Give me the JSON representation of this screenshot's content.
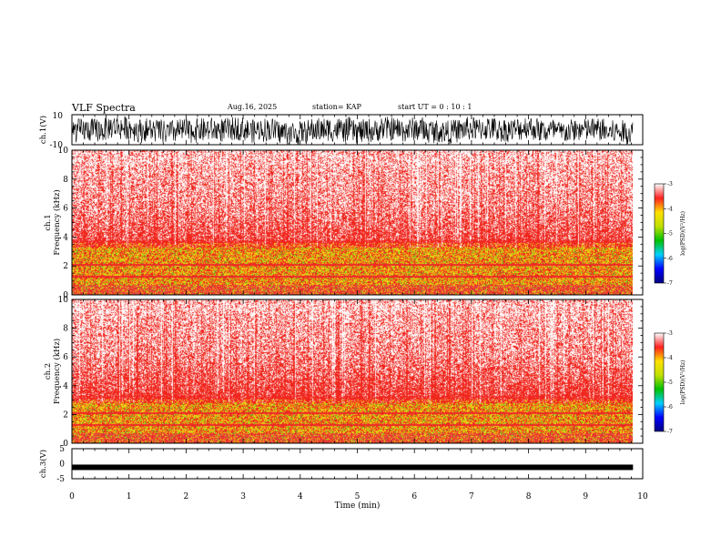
{
  "header": {
    "title": "VLF Spectra",
    "date": "Aug.16, 2025",
    "station": "station= KAP",
    "start": "start  UT  =   0  : 10 : 1"
  },
  "chart_data": [
    {
      "id": "ch1-waveform",
      "type": "line",
      "ylabel": "ch.1(V)",
      "ylim": [
        -10,
        10
      ],
      "ytick_labels": [
        "10",
        "-10"
      ],
      "xlim": [
        0,
        10
      ],
      "data_extent_min": 9.83,
      "description_values": {
        "min": -10,
        "max": 10
      }
    },
    {
      "id": "ch1-spectrogram",
      "type": "heatmap",
      "ylabel": "ch.1\nFrequency  (kHz)",
      "ylabel_lines": [
        "ch.1",
        "Frequency  (kHz)"
      ],
      "ylim": [
        0,
        10
      ],
      "yticks": [
        0,
        2,
        4,
        6,
        8,
        10
      ],
      "xlim": [
        0,
        10
      ],
      "band_top_khz": 3.3,
      "colorbar": {
        "label": "log(PSD)(V²/Hz)",
        "min": -7,
        "max": -3,
        "tick_labels": [
          "-3",
          "-4",
          "-5",
          "-6",
          "-7"
        ]
      }
    },
    {
      "id": "ch2-spectrogram",
      "type": "heatmap",
      "ylabel_lines": [
        "ch.2",
        "Frequency  (kHz)"
      ],
      "ylim": [
        0,
        10
      ],
      "yticks": [
        0,
        2,
        4,
        6,
        8,
        10
      ],
      "xlim": [
        0,
        10
      ],
      "band_top_khz": 2.8,
      "colorbar": {
        "label": "log(PSD)(V²/Hz)",
        "min": -7,
        "max": -3,
        "tick_labels": [
          "-3",
          "-4",
          "-5",
          "-6",
          "-7"
        ]
      }
    },
    {
      "id": "ch3-waveform",
      "type": "line",
      "ylabel": "ch.3(V)",
      "ylim": [
        -5,
        5
      ],
      "ytick_labels": [
        "5",
        "0",
        "-5"
      ],
      "level": -1.2,
      "xlim": [
        0,
        10
      ],
      "xticks": [
        0,
        1,
        2,
        3,
        4,
        5,
        6,
        7,
        8,
        9,
        10
      ],
      "xlabel": "Time  (min)",
      "data_extent_min": 9.83
    }
  ],
  "colors": {
    "background": "#ffffff",
    "axis": "#000000",
    "scale": [
      "#000080",
      "#0000ff",
      "#00d0ff",
      "#00c000",
      "#c0e000",
      "#ffe000",
      "#ff2020",
      "#ffffff"
    ]
  }
}
